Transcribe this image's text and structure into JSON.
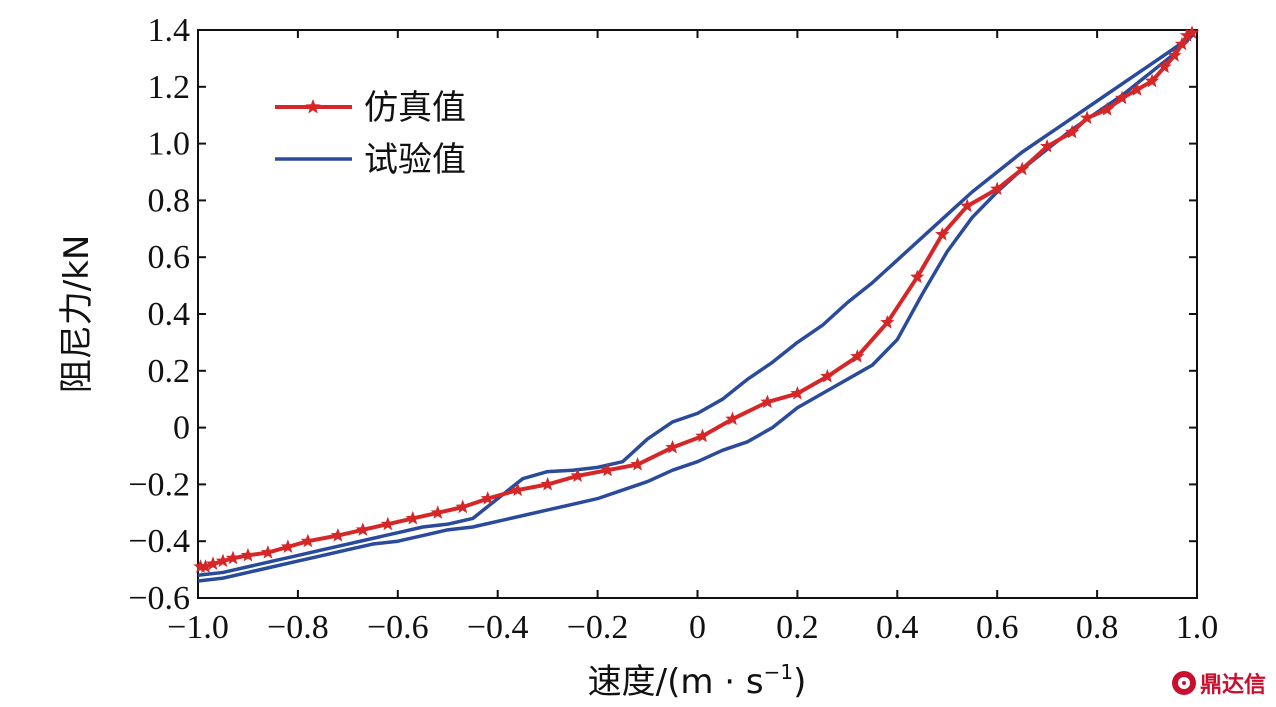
{
  "chart_data": {
    "type": "line",
    "xlabel_main": "速度/(m",
    "xlabel_mid": "s",
    "xlabel_sup": "−1",
    "xlabel_end": ")",
    "ylabel": "阻尼力/kN",
    "xlim": [
      -1.0,
      1.0
    ],
    "ylim": [
      -0.6,
      1.4
    ],
    "xticks": [
      -1.0,
      -0.8,
      -0.6,
      -0.4,
      -0.2,
      0,
      0.2,
      0.4,
      0.6,
      0.8,
      1.0
    ],
    "xtick_labels": [
      "−1.0",
      "−0.8",
      "−0.6",
      "−0.4",
      "−0.2",
      "0",
      "0.2",
      "0.4",
      "0.6",
      "0.8",
      "1.0"
    ],
    "yticks": [
      -0.6,
      -0.4,
      -0.2,
      0,
      0.2,
      0.4,
      0.6,
      0.8,
      1.0,
      1.2,
      1.4
    ],
    "ytick_labels": [
      "−0.6",
      "−0.4",
      "−0.2",
      "0",
      "0.2",
      "0.4",
      "0.6",
      "0.8",
      "1.0",
      "1.2",
      "1.4"
    ],
    "grid": false,
    "legend_position": "top-left",
    "series": [
      {
        "name": "仿真值",
        "color": "#d62728",
        "marker": "star",
        "x": [
          -0.995,
          -0.985,
          -0.97,
          -0.95,
          -0.93,
          -0.9,
          -0.86,
          -0.82,
          -0.78,
          -0.72,
          -0.67,
          -0.62,
          -0.57,
          -0.52,
          -0.47,
          -0.42,
          -0.36,
          -0.3,
          -0.24,
          -0.18,
          -0.12,
          -0.05,
          0.01,
          0.07,
          0.14,
          0.2,
          0.26,
          0.32,
          0.38,
          0.44,
          0.49,
          0.54,
          0.6,
          0.65,
          0.7,
          0.75,
          0.78,
          0.82,
          0.85,
          0.88,
          0.91,
          0.935,
          0.955,
          0.97,
          0.98,
          0.99
        ],
        "y": [
          -0.49,
          -0.49,
          -0.48,
          -0.47,
          -0.46,
          -0.45,
          -0.44,
          -0.42,
          -0.4,
          -0.38,
          -0.36,
          -0.34,
          -0.32,
          -0.3,
          -0.28,
          -0.25,
          -0.22,
          -0.2,
          -0.17,
          -0.15,
          -0.13,
          -0.07,
          -0.03,
          0.03,
          0.09,
          0.12,
          0.18,
          0.25,
          0.37,
          0.53,
          0.68,
          0.78,
          0.84,
          0.91,
          0.99,
          1.04,
          1.09,
          1.12,
          1.16,
          1.19,
          1.22,
          1.27,
          1.31,
          1.35,
          1.38,
          1.39
        ]
      },
      {
        "name": "试验值",
        "color": "#2a4b9b",
        "x": [
          -1.0,
          -0.95,
          -0.9,
          -0.85,
          -0.8,
          -0.75,
          -0.7,
          -0.65,
          -0.6,
          -0.55,
          -0.5,
          -0.45,
          -0.4,
          -0.35,
          -0.3,
          -0.25,
          -0.2,
          -0.15,
          -0.1,
          -0.05,
          0.0,
          0.05,
          0.1,
          0.15,
          0.2,
          0.25,
          0.3,
          0.35,
          0.4,
          0.45,
          0.5,
          0.55,
          0.6,
          0.65,
          0.7,
          0.75,
          0.8,
          0.85,
          0.9,
          0.95,
          0.99,
          0.95,
          0.9,
          0.85,
          0.8,
          0.75,
          0.7,
          0.65,
          0.6,
          0.55,
          0.5,
          0.45,
          0.4,
          0.35,
          0.3,
          0.25,
          0.2,
          0.15,
          0.1,
          0.05,
          0.0,
          -0.05,
          -0.1,
          -0.15,
          -0.2,
          -0.25,
          -0.3,
          -0.35,
          -0.4,
          -0.45,
          -0.5,
          -0.55,
          -0.6,
          -0.65,
          -0.7,
          -0.75,
          -0.8,
          -0.85,
          -0.9,
          -0.95,
          -1.0
        ],
        "y": [
          -0.52,
          -0.51,
          -0.49,
          -0.47,
          -0.45,
          -0.43,
          -0.41,
          -0.39,
          -0.37,
          -0.35,
          -0.34,
          -0.32,
          -0.25,
          -0.18,
          -0.155,
          -0.15,
          -0.14,
          -0.12,
          -0.04,
          0.02,
          0.05,
          0.1,
          0.17,
          0.23,
          0.3,
          0.36,
          0.44,
          0.51,
          0.59,
          0.67,
          0.75,
          0.83,
          0.9,
          0.97,
          1.03,
          1.09,
          1.15,
          1.21,
          1.27,
          1.33,
          1.38,
          1.31,
          1.24,
          1.17,
          1.11,
          1.05,
          0.98,
          0.91,
          0.83,
          0.74,
          0.62,
          0.47,
          0.31,
          0.22,
          0.17,
          0.12,
          0.07,
          0.0,
          -0.05,
          -0.08,
          -0.12,
          -0.15,
          -0.19,
          -0.22,
          -0.25,
          -0.27,
          -0.29,
          -0.31,
          -0.33,
          -0.35,
          -0.36,
          -0.38,
          -0.4,
          -0.41,
          -0.43,
          -0.45,
          -0.47,
          -0.49,
          -0.51,
          -0.53,
          -0.54
        ]
      }
    ]
  },
  "watermark": "鼎达信"
}
